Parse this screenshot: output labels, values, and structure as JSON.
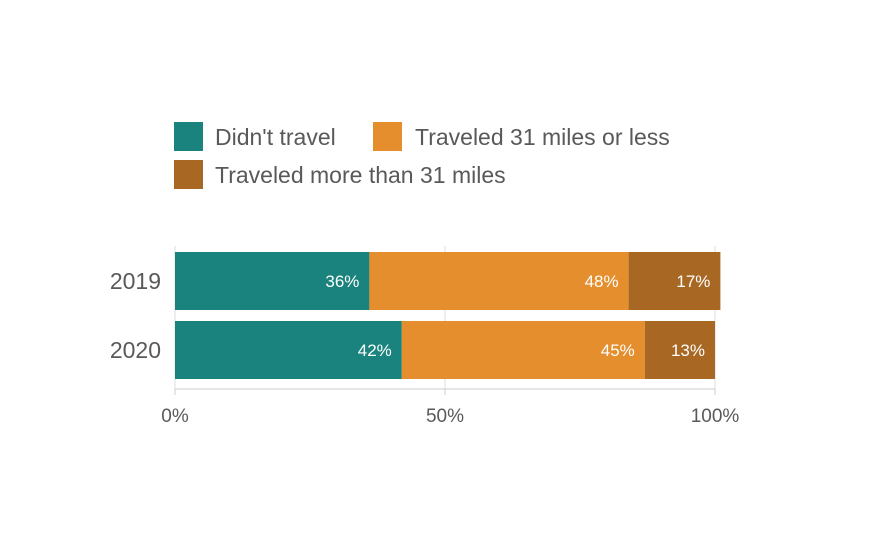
{
  "chart_data": {
    "type": "bar",
    "orientation": "horizontal",
    "stacked": true,
    "categories": [
      "2019",
      "2020"
    ],
    "series": [
      {
        "name": "Didn't travel",
        "values": [
          36,
          42
        ],
        "color": "#1a837e"
      },
      {
        "name": "Traveled 31 miles or less",
        "values": [
          48,
          45
        ],
        "color": "#e58e2d"
      },
      {
        "name": "Traveled more than 31 miles",
        "values": [
          17,
          13
        ],
        "color": "#a86824"
      }
    ],
    "data_labels": [
      [
        "36%",
        "42%"
      ],
      [
        "48%",
        "45%"
      ],
      [
        "17%",
        "13%"
      ]
    ],
    "xlim": [
      0,
      100
    ],
    "xticks": [
      0,
      50,
      100
    ],
    "xtick_labels": [
      "0%",
      "50%",
      "100%"
    ],
    "grid": true,
    "legend_position": "top-left"
  }
}
